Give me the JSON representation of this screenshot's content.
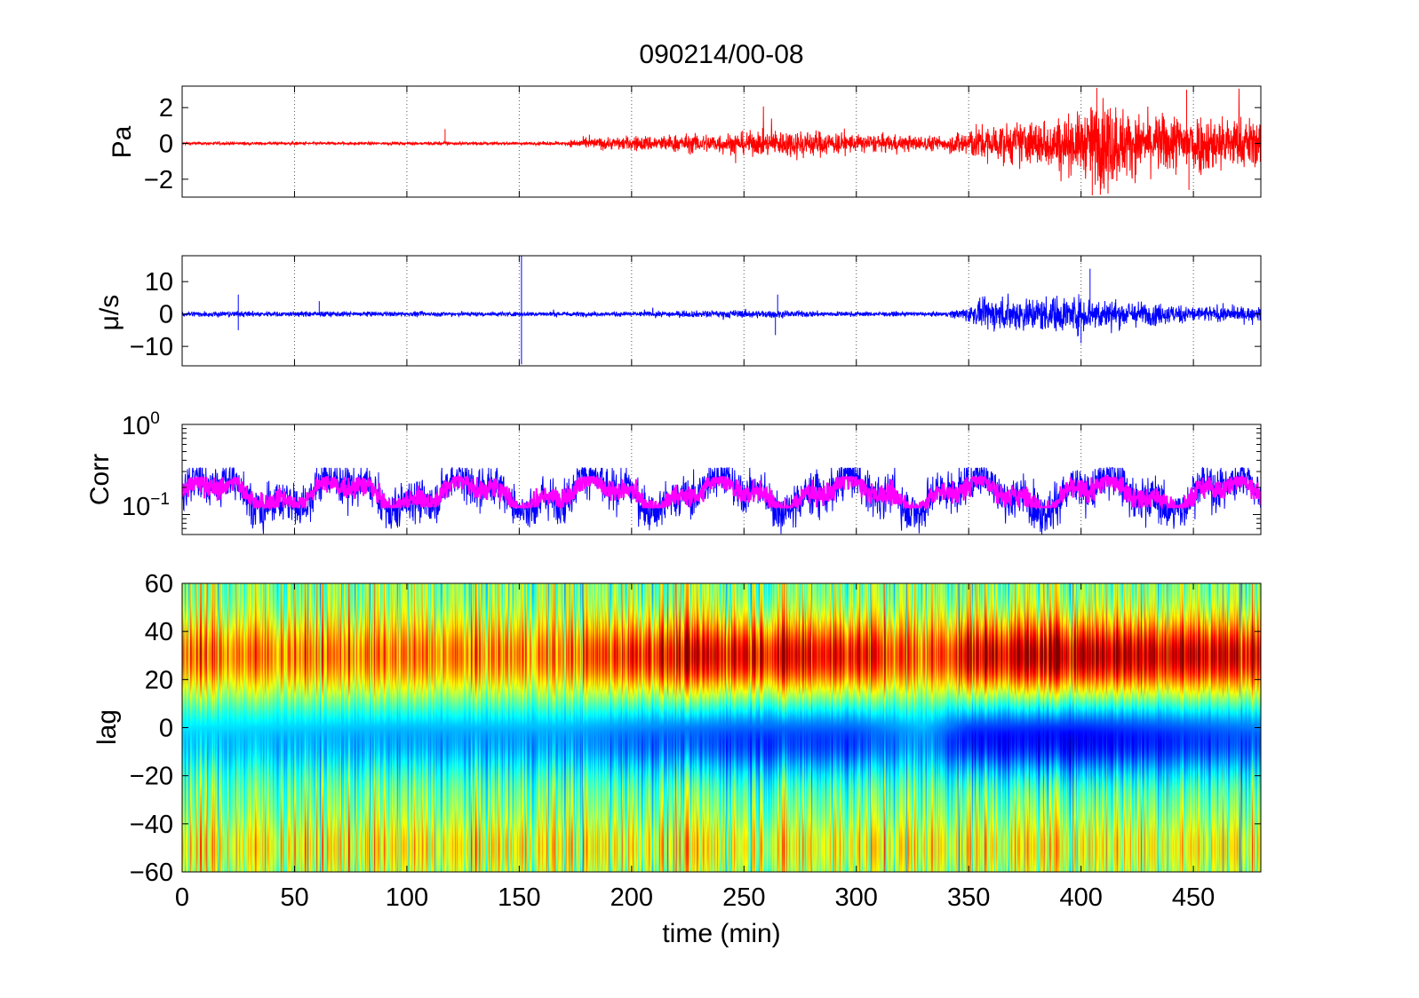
{
  "title": "090214/00-08",
  "xlabel": "time (min)",
  "x_ticks": [
    "0",
    "50",
    "100",
    "150",
    "200",
    "250",
    "300",
    "350",
    "400",
    "450"
  ],
  "colors": {
    "pressure": "#ff0000",
    "velocity": "#0000ff",
    "corr_raw": "#0000ff",
    "corr_smooth": "#ff00ff"
  },
  "chart_data": [
    {
      "type": "line",
      "ylabel": "Pa",
      "xlim": [
        0,
        480
      ],
      "ylim": [
        -3,
        3.2
      ],
      "y_ticks": [
        "2",
        "0",
        "−2"
      ],
      "grid": true,
      "amplitude_envelope": {
        "x": [
          0,
          50,
          100,
          115,
          120,
          150,
          170,
          175,
          200,
          250,
          275,
          300,
          340,
          350,
          375,
          400,
          410,
          425,
          450,
          480
        ],
        "amp": [
          0.08,
          0.08,
          0.07,
          0.1,
          0.08,
          0.08,
          0.1,
          0.25,
          0.4,
          0.6,
          0.8,
          0.5,
          0.4,
          0.9,
          1.2,
          1.6,
          2.6,
          1.5,
          1.7,
          1.3
        ]
      },
      "spikes": [
        {
          "x": 117,
          "y": 0.8
        },
        {
          "x": 407,
          "y": 3.1
        },
        {
          "x": 405,
          "y": -2.9
        },
        {
          "x": 447,
          "y": 3.0
        },
        {
          "x": 448,
          "y": -2.6
        },
        {
          "x": 412,
          "y": -2.8
        }
      ]
    },
    {
      "type": "line",
      "ylabel": "μ/s",
      "xlim": [
        0,
        480
      ],
      "ylim": [
        -16,
        18
      ],
      "y_ticks": [
        "10",
        "0",
        "−10"
      ],
      "grid": true,
      "amplitude_envelope": {
        "x": [
          0,
          50,
          100,
          150,
          200,
          250,
          300,
          340,
          350,
          360,
          400,
          410,
          450,
          480
        ],
        "amp": [
          0.9,
          0.8,
          0.7,
          0.7,
          0.7,
          1.2,
          0.7,
          0.6,
          2.5,
          5.0,
          5.5,
          4.5,
          2.5,
          2.0
        ]
      },
      "spikes": [
        {
          "x": 151,
          "y": 18
        },
        {
          "x": 151,
          "y": -15.5
        },
        {
          "x": 25,
          "y": 6
        },
        {
          "x": 25,
          "y": -5
        },
        {
          "x": 61,
          "y": 4
        },
        {
          "x": 265,
          "y": 6
        },
        {
          "x": 264,
          "y": -6.5
        },
        {
          "x": 404,
          "y": 14
        },
        {
          "x": 400,
          "y": -9
        }
      ]
    },
    {
      "type": "line",
      "ylabel": "Corr",
      "yscale": "log",
      "xlim": [
        0,
        480
      ],
      "ylim": [
        0.06,
        1.0
      ],
      "y_ticks": [
        {
          "base": "10",
          "exp": "0"
        },
        {
          "base": "10",
          "exp": "−1"
        }
      ],
      "grid": true,
      "series": [
        {
          "role": "raw",
          "center": 0.17,
          "spread_low": 0.06,
          "spread_high": 0.33
        },
        {
          "role": "smoothed",
          "center": 0.17,
          "spread_low": 0.12,
          "spread_high": 0.26
        }
      ]
    },
    {
      "type": "heatmap",
      "ylabel": "lag",
      "xlim": [
        0,
        480
      ],
      "ylim": [
        -60,
        60
      ],
      "y_ticks": [
        "60",
        "40",
        "20",
        "0",
        "−20",
        "−40",
        "−60"
      ],
      "colormap": "jet",
      "bands": [
        {
          "lag_center": 30,
          "sign": "positive",
          "strength_x": [
            0,
            100,
            170,
            200,
            250,
            300,
            330,
            350,
            400,
            480
          ],
          "strength": [
            0.55,
            0.5,
            0.5,
            0.75,
            0.85,
            0.8,
            0.55,
            0.85,
            0.95,
            0.85
          ]
        },
        {
          "lag_center": -5,
          "sign": "negative",
          "strength_x": [
            0,
            100,
            170,
            200,
            250,
            300,
            330,
            350,
            400,
            480
          ],
          "strength": [
            0.35,
            0.45,
            0.45,
            0.55,
            0.65,
            0.65,
            0.45,
            0.75,
            0.8,
            0.6
          ]
        },
        {
          "lag_center": -50,
          "sign": "positive",
          "strength_x": [
            0,
            480
          ],
          "strength": [
            0.25,
            0.25
          ]
        }
      ]
    }
  ]
}
